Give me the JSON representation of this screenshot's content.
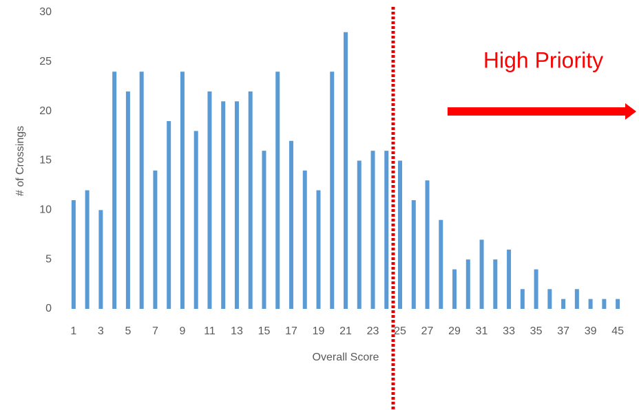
{
  "chart_data": {
    "type": "bar",
    "categories": [
      "1",
      null,
      "3",
      null,
      "5",
      null,
      "7",
      null,
      "9",
      null,
      "11",
      null,
      "13",
      null,
      "15",
      null,
      "17",
      null,
      "19",
      null,
      "21",
      null,
      "23",
      null,
      "25",
      null,
      "27",
      null,
      "29",
      null,
      "31",
      null,
      "33",
      null,
      "35",
      null,
      "37",
      null,
      "39",
      null,
      "45"
    ],
    "values": [
      11,
      12,
      10,
      24,
      22,
      24,
      14,
      19,
      24,
      18,
      22,
      21,
      21,
      22,
      16,
      24,
      17,
      14,
      12,
      24,
      28,
      15,
      16,
      16,
      15,
      11,
      13,
      9,
      4,
      5,
      7,
      5,
      6,
      2,
      4,
      2,
      1,
      2,
      1,
      1,
      1
    ],
    "color": "#5b9bd5",
    "x_label": "Overall Score",
    "y_label": "# of Crossings",
    "ylim": [
      0,
      30
    ],
    "yticks": [
      0,
      5,
      10,
      15,
      20,
      25,
      30
    ],
    "grid": false,
    "annotation": "High Priority"
  }
}
